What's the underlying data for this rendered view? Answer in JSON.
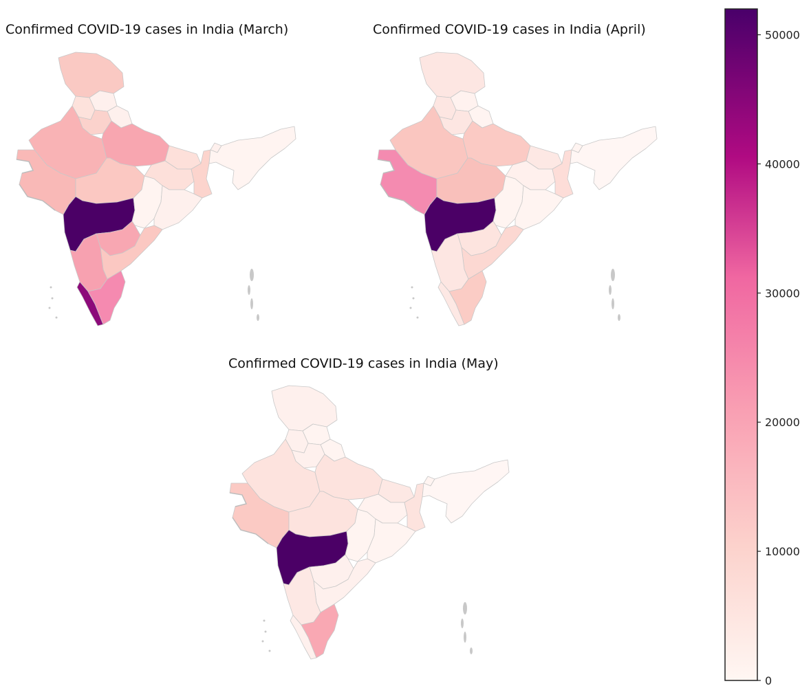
{
  "maps": [
    {
      "title": "Confirmed COVID-19 cases in India (March)",
      "fills": {
        "jammu_kashmir": "#fac9c3",
        "himachal": "#fef0ed",
        "punjab": "#fde2dc",
        "haryana": "#fbd2cc",
        "uttarakhand": "#fef0ed",
        "rajasthan": "#f9b3b5",
        "uttar_pradesh": "#f8a6b0",
        "gujarat": "#f9b9b7",
        "madhya_pradesh": "#fbc8c2",
        "maharashtra": "#4b0066",
        "chhattisgarh": "#fff4f1",
        "jharkhand": "#fde0da",
        "bihar": "#fde0da",
        "west_bengal": "#fcd4cd",
        "odisha": "#fef0ed",
        "telangana": "#f8a7b2",
        "andhra_pradesh": "#fbc8c2",
        "karnataka": "#f7a1b0",
        "kerala": "#8c0a7a",
        "tamil_nadu": "#f58ab0",
        "northeast": "#fff4f1",
        "sikkim": "#fef0ed"
      }
    },
    {
      "title": "Confirmed COVID-19 cases in India (April)",
      "fills": {
        "jammu_kashmir": "#fde6e2",
        "himachal": "#fff2ef",
        "punjab": "#fde6e2",
        "haryana": "#fde6e2",
        "uttarakhand": "#fff4f1",
        "rajasthan": "#fac6c0",
        "uttar_pradesh": "#fbcac4",
        "gujarat": "#f48bb0",
        "madhya_pradesh": "#f9c0bb",
        "maharashtra": "#4b0066",
        "chhattisgarh": "#fff4f1",
        "jharkhand": "#fff0ed",
        "bihar": "#fde8e4",
        "west_bengal": "#fdddd8",
        "odisha": "#fff4f1",
        "telangana": "#fde4df",
        "andhra_pradesh": "#fcd8d2",
        "karnataka": "#fde6e2",
        "kerala": "#fde8e4",
        "tamil_nadu": "#fbccc5",
        "northeast": "#fff6f4",
        "sikkim": "#fff4f1"
      }
    },
    {
      "title": "Confirmed COVID-19 cases in India (May)",
      "fills": {
        "jammu_kashmir": "#fef0ed",
        "himachal": "#fff4f1",
        "punjab": "#fef0ed",
        "haryana": "#fef0ed",
        "uttarakhand": "#fff4f1",
        "rajasthan": "#fde3de",
        "uttar_pradesh": "#fde3de",
        "gujarat": "#fbcac4",
        "madhya_pradesh": "#fde3de",
        "maharashtra": "#4b0066",
        "chhattisgarh": "#fff4f1",
        "jharkhand": "#fff2ef",
        "bihar": "#fde8e4",
        "west_bengal": "#fde3de",
        "odisha": "#fff4f1",
        "telangana": "#fef0ed",
        "andhra_pradesh": "#fef0ed",
        "karnataka": "#fde8e4",
        "kerala": "#fef0ed",
        "tamil_nadu": "#f9a8b3",
        "northeast": "#fff6f4",
        "sikkim": "#fff4f1"
      }
    }
  ],
  "colorbar": {
    "min": 0,
    "max": 52000,
    "ticks": [
      "0",
      "10000",
      "20000",
      "30000",
      "40000",
      "50000"
    ],
    "tick_values": [
      0,
      10000,
      20000,
      30000,
      40000,
      50000
    ],
    "gradient": [
      {
        "stop": 0.0,
        "color": "#fff7f3"
      },
      {
        "stop": 0.2,
        "color": "#fcd2cc"
      },
      {
        "stop": 0.4,
        "color": "#f9a0b3"
      },
      {
        "stop": 0.6,
        "color": "#f067a1"
      },
      {
        "stop": 0.78,
        "color": "#b00a82"
      },
      {
        "stop": 1.0,
        "color": "#49006a"
      }
    ]
  }
}
